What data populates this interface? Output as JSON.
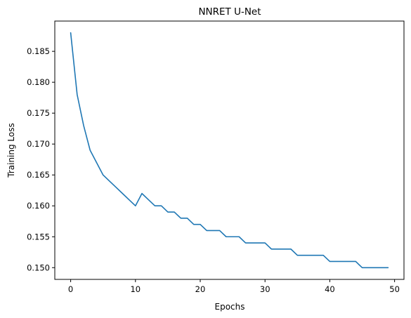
{
  "chart_data": {
    "type": "line",
    "title": "NNRET U-Net",
    "xlabel": "Epochs",
    "ylabel": "Training Loss",
    "xlim": [
      -2.45,
      51.45
    ],
    "ylim": [
      0.1481,
      0.1899
    ],
    "xticks": [
      0,
      10,
      20,
      30,
      40,
      50
    ],
    "yticks": [
      0.15,
      0.155,
      0.16,
      0.165,
      0.17,
      0.175,
      0.18,
      0.185
    ],
    "xtick_labels": [
      "0",
      "10",
      "20",
      "30",
      "40",
      "50"
    ],
    "ytick_labels": [
      "0.150",
      "0.155",
      "0.160",
      "0.165",
      "0.170",
      "0.175",
      "0.180",
      "0.185"
    ],
    "grid": false,
    "series": [
      {
        "color": "#1f77b4",
        "x": [
          0,
          1,
          2,
          3,
          4,
          5,
          6,
          7,
          8,
          9,
          10,
          11,
          12,
          13,
          14,
          15,
          16,
          17,
          18,
          19,
          20,
          21,
          22,
          23,
          24,
          25,
          26,
          27,
          28,
          29,
          30,
          31,
          32,
          33,
          34,
          35,
          36,
          37,
          38,
          39,
          40,
          41,
          42,
          43,
          44,
          45,
          46,
          47,
          48,
          49
        ],
        "values": [
          0.188,
          0.178,
          0.173,
          0.169,
          0.167,
          0.165,
          0.164,
          0.163,
          0.162,
          0.161,
          0.16,
          0.162,
          0.161,
          0.16,
          0.16,
          0.159,
          0.159,
          0.158,
          0.158,
          0.157,
          0.157,
          0.156,
          0.156,
          0.156,
          0.155,
          0.155,
          0.155,
          0.154,
          0.154,
          0.154,
          0.154,
          0.153,
          0.153,
          0.153,
          0.153,
          0.152,
          0.152,
          0.152,
          0.152,
          0.152,
          0.151,
          0.151,
          0.151,
          0.151,
          0.151,
          0.15,
          0.15,
          0.15,
          0.15,
          0.15
        ]
      }
    ]
  }
}
